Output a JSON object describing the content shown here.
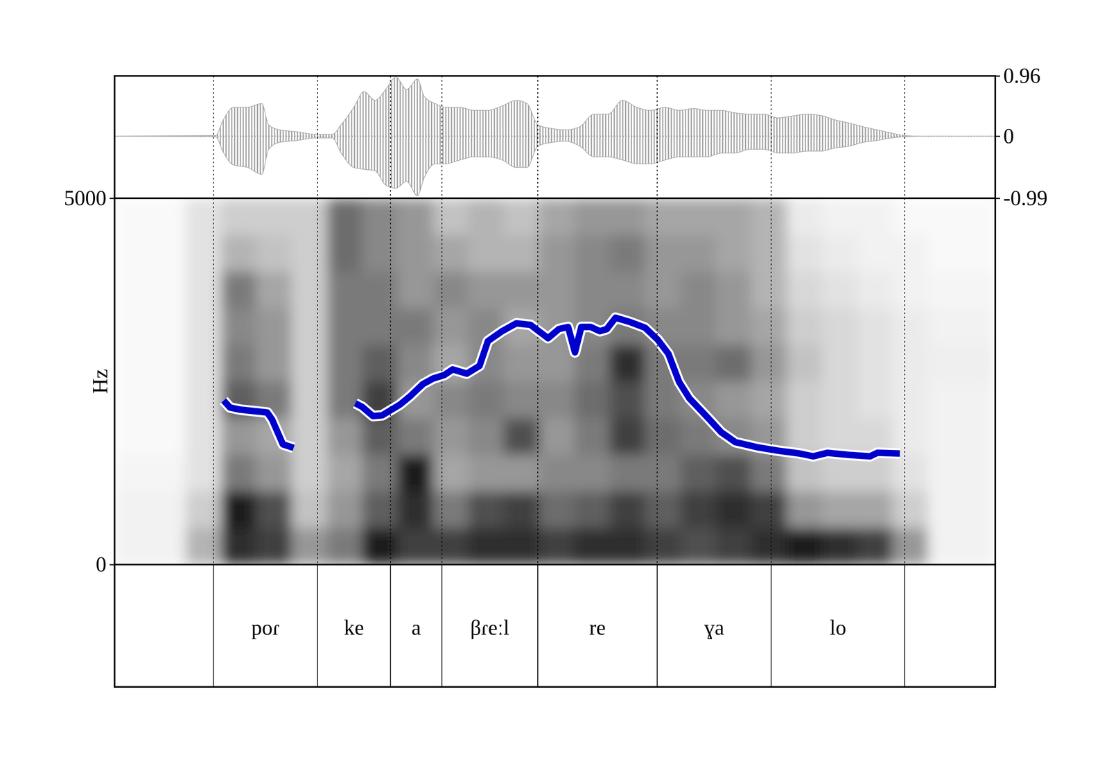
{
  "chart_data": [
    {
      "type": "waveform",
      "color": "#a6a6a6",
      "tick_labels": "y",
      "xlim": [
        0,
        1.8
      ],
      "ylim": [
        -0.99,
        0.96
      ],
      "yticks": [
        -0.99,
        0,
        0.96
      ],
      "x": [
        0,
        0.207,
        0.221,
        0.243,
        0.272,
        0.301,
        0.315,
        0.337,
        0.373,
        0.409,
        0.445,
        0.463,
        0.489,
        0.51,
        0.532,
        0.554,
        0.575,
        0.597,
        0.619,
        0.633,
        0.655,
        0.677,
        0.706,
        0.734,
        0.763,
        0.792,
        0.821,
        0.843,
        0.865,
        0.894,
        0.922,
        0.951,
        0.98,
        1.009,
        1.038,
        1.067,
        1.096,
        1.125,
        1.154,
        1.183,
        1.212,
        1.24,
        1.269,
        1.298,
        1.327,
        1.356,
        1.385,
        1.414,
        1.443,
        1.472,
        1.501,
        1.53,
        1.559,
        1.587,
        1.616,
        1.645,
        1.8
      ],
      "series": [
        {
          "values": [
            0,
            0.01,
            0.24,
            0.46,
            0.46,
            0.52,
            0.18,
            0.1,
            0.07,
            0.03,
            0.03,
            0.18,
            0.46,
            0.71,
            0.57,
            0.74,
            0.94,
            0.74,
            0.91,
            0.63,
            0.52,
            0.46,
            0.46,
            0.41,
            0.41,
            0.48,
            0.57,
            0.52,
            0.18,
            0.12,
            0.1,
            0.15,
            0.35,
            0.35,
            0.57,
            0.46,
            0.41,
            0.46,
            0.41,
            0.44,
            0.41,
            0.41,
            0.37,
            0.35,
            0.35,
            0.29,
            0.32,
            0.35,
            0.33,
            0.26,
            0.21,
            0.15,
            0.1,
            0.05,
            0.01,
            0,
            0
          ]
        },
        {
          "values": [
            0,
            -0.01,
            -0.24,
            -0.46,
            -0.5,
            -0.61,
            -0.21,
            -0.1,
            -0.07,
            -0.03,
            -0.03,
            -0.27,
            -0.5,
            -0.53,
            -0.55,
            -0.78,
            -0.83,
            -0.72,
            -0.95,
            -0.66,
            -0.44,
            -0.44,
            -0.38,
            -0.33,
            -0.33,
            -0.38,
            -0.5,
            -0.5,
            -0.16,
            -0.1,
            -0.08,
            -0.16,
            -0.33,
            -0.33,
            -0.38,
            -0.44,
            -0.44,
            -0.38,
            -0.33,
            -0.33,
            -0.33,
            -0.27,
            -0.27,
            -0.21,
            -0.21,
            -0.27,
            -0.27,
            -0.24,
            -0.24,
            -0.19,
            -0.16,
            -0.1,
            -0.07,
            -0.03,
            -0.01,
            0,
            0
          ]
        }
      ]
    },
    {
      "type": "heatmap",
      "y_label": "Hz",
      "tick_labels": "y",
      "xlim": [
        0,
        1.8
      ],
      "ylim": [
        0,
        5000
      ],
      "yticks": [
        0,
        5000
      ],
      "x_edges": [
        0,
        0.072,
        0.145,
        0.217,
        0.289,
        0.362,
        0.434,
        0.506,
        0.578,
        0.651,
        0.723,
        0.795,
        0.868,
        0.94,
        1.012,
        1.084,
        1.157,
        1.229,
        1.301,
        1.374,
        1.446,
        1.518,
        1.59,
        1.663,
        1.735,
        1.8
      ],
      "y_edges": [
        0,
        500,
        1000,
        1500,
        2000,
        2500,
        3000,
        3500,
        4000,
        4500,
        5000
      ],
      "cells": [
        [
          0.1,
          0.1,
          0.08,
          0.05,
          0.05,
          0.05,
          0.05,
          0.05,
          0.05,
          0.05
        ],
        [
          0.1,
          0.1,
          0.08,
          0.05,
          0.05,
          0.05,
          0.05,
          0.05,
          0.05,
          0.05
        ],
        [
          0.4,
          0.3,
          0.2,
          0.2,
          0.2,
          0.2,
          0.2,
          0.2,
          0.2,
          0.2
        ],
        [
          0.85,
          0.9,
          0.6,
          0.5,
          0.7,
          0.6,
          0.55,
          0.6,
          0.4,
          0.3
        ],
        [
          0.8,
          0.75,
          0.5,
          0.45,
          0.6,
          0.5,
          0.5,
          0.45,
          0.35,
          0.3
        ],
        [
          0.5,
          0.35,
          0.3,
          0.3,
          0.3,
          0.3,
          0.3,
          0.3,
          0.3,
          0.3
        ],
        [
          0.6,
          0.5,
          0.45,
          0.5,
          0.6,
          0.6,
          0.6,
          0.6,
          0.65,
          0.65
        ],
        [
          0.9,
          0.7,
          0.6,
          0.7,
          0.8,
          0.7,
          0.6,
          0.6,
          0.55,
          0.55
        ],
        [
          0.8,
          0.85,
          0.9,
          0.6,
          0.5,
          0.55,
          0.6,
          0.5,
          0.5,
          0.5
        ],
        [
          0.8,
          0.6,
          0.45,
          0.5,
          0.55,
          0.45,
          0.5,
          0.55,
          0.45,
          0.35
        ],
        [
          0.85,
          0.75,
          0.5,
          0.55,
          0.6,
          0.55,
          0.55,
          0.5,
          0.4,
          0.4
        ],
        [
          0.85,
          0.8,
          0.5,
          0.75,
          0.55,
          0.5,
          0.45,
          0.5,
          0.4,
          0.35
        ],
        [
          0.8,
          0.65,
          0.55,
          0.5,
          0.55,
          0.5,
          0.5,
          0.5,
          0.5,
          0.45
        ],
        [
          0.85,
          0.7,
          0.55,
          0.6,
          0.65,
          0.6,
          0.55,
          0.55,
          0.55,
          0.5
        ],
        [
          0.85,
          0.8,
          0.6,
          0.8,
          0.75,
          0.85,
          0.6,
          0.55,
          0.6,
          0.5
        ],
        [
          0.8,
          0.7,
          0.6,
          0.65,
          0.6,
          0.6,
          0.55,
          0.5,
          0.5,
          0.45
        ],
        [
          0.75,
          0.8,
          0.7,
          0.6,
          0.55,
          0.6,
          0.55,
          0.55,
          0.5,
          0.45
        ],
        [
          0.8,
          0.85,
          0.75,
          0.55,
          0.5,
          0.65,
          0.5,
          0.5,
          0.45,
          0.45
        ],
        [
          0.85,
          0.8,
          0.6,
          0.5,
          0.45,
          0.5,
          0.45,
          0.4,
          0.4,
          0.4
        ],
        [
          0.9,
          0.5,
          0.35,
          0.3,
          0.3,
          0.35,
          0.3,
          0.25,
          0.2,
          0.15
        ],
        [
          0.85,
          0.45,
          0.3,
          0.25,
          0.25,
          0.25,
          0.25,
          0.2,
          0.15,
          0.1
        ],
        [
          0.8,
          0.45,
          0.3,
          0.25,
          0.2,
          0.2,
          0.2,
          0.15,
          0.1,
          0.1
        ],
        [
          0.5,
          0.3,
          0.2,
          0.15,
          0.15,
          0.15,
          0.15,
          0.1,
          0.1,
          0.05
        ],
        [
          0.1,
          0.1,
          0.1,
          0.1,
          0.1,
          0.12,
          0.1,
          0.08,
          0.05,
          0.05
        ],
        [
          0.1,
          0.1,
          0.1,
          0.1,
          0.1,
          0.12,
          0.1,
          0.08,
          0.05,
          0.05
        ]
      ],
      "series": [
        {
          "type": "line",
          "color": "#0000cc",
          "x": [
            0.223,
            0.236,
            0.257,
            0.312,
            0.322,
            0.344,
            0.366,
            0.429,
            0.492,
            0.506,
            0.528,
            0.547,
            0.583,
            0.604,
            0.63,
            0.651,
            0.674,
            0.691,
            0.72,
            0.746,
            0.763,
            0.792,
            0.821,
            0.85,
            0.867,
            0.886,
            0.908,
            0.927,
            0.941,
            0.954,
            0.973,
            0.992,
            1.006,
            1.024,
            1.053,
            1.084,
            1.11,
            1.132,
            1.154,
            1.175,
            1.212,
            1.24,
            1.269,
            1.313,
            1.356,
            1.4,
            1.428,
            1.457,
            1.501,
            1.544,
            1.559,
            1.605
          ],
          "values": [
            2239,
            2143,
            2114,
            2075,
            1979,
            1641,
            1593,
            null,
            2201,
            2153,
            2027,
            2037,
            2182,
            2297,
            2462,
            2539,
            2587,
            2664,
            2606,
            2712,
            3050,
            3185,
            3292,
            3272,
            3185,
            3089,
            3214,
            3243,
            2896,
            3243,
            3243,
            3185,
            3214,
            3369,
            3311,
            3234,
            3070,
            2877,
            2490,
            2268,
            2008,
            1805,
            1670,
            1602,
            1554,
            1516,
            1477,
            1525,
            1496,
            1477,
            1525,
            1516
          ]
        }
      ],
      "intervals": {
        "boundaries": [
          0.202,
          0.415,
          0.564,
          0.669,
          0.865,
          1.109,
          1.342,
          1.615
        ],
        "labels": [
          "poɾ",
          "ke",
          "a",
          "βɾeːl",
          "re",
          "ɣa",
          "lo"
        ]
      }
    }
  ]
}
